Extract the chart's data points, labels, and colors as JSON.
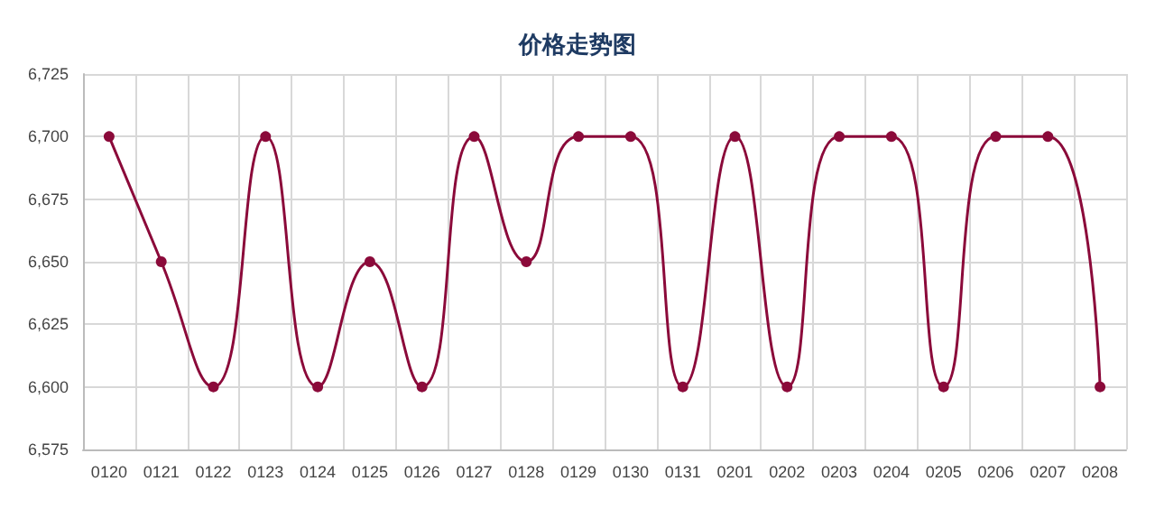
{
  "chart_data": {
    "type": "line",
    "title": "价格走势图",
    "categories": [
      "0120",
      "0121",
      "0122",
      "0123",
      "0124",
      "0125",
      "0126",
      "0127",
      "0128",
      "0129",
      "0130",
      "0131",
      "0201",
      "0202",
      "0203",
      "0204",
      "0205",
      "0206",
      "0207",
      "0208"
    ],
    "series": [
      {
        "color": "#8b0a3a",
        "values": [
          6700,
          6650,
          6600,
          6700,
          6600,
          6650,
          6600,
          6700,
          6650,
          6700,
          6700,
          6600,
          6700,
          6600,
          6700,
          6700,
          6600,
          6700,
          6700,
          6600
        ]
      }
    ],
    "ylim": [
      6575,
      6725
    ],
    "yticks": [
      {
        "value": 6575,
        "label": "6,575"
      },
      {
        "value": 6600,
        "label": "6,600"
      },
      {
        "value": 6625,
        "label": "6,625"
      },
      {
        "value": 6650,
        "label": "6,650"
      },
      {
        "value": 6675,
        "label": "6,675"
      },
      {
        "value": 6700,
        "label": "6,700"
      },
      {
        "value": 6725,
        "label": "6,725"
      }
    ],
    "grid": true,
    "marker": "circle",
    "line_style": "solid"
  }
}
